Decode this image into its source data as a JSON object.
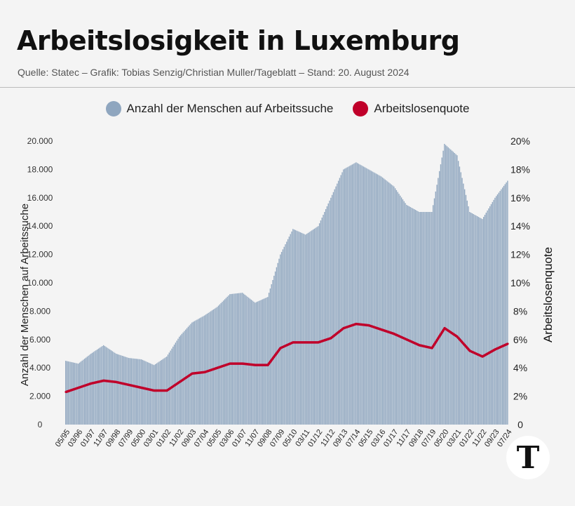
{
  "header": {
    "title": "Arbeitslosigkeit in Luxemburg",
    "subtitle": "Quelle: Statec – Grafik: Tobias Senzig/Christian Muller/Tageblatt – Stand: 20. August 2024"
  },
  "logo": "T",
  "chart_data": {
    "type": "bar+line",
    "legend_position": "top",
    "ylabel_left": "Anzahl der Menschen auf Arbeitssuche",
    "ylabel_right": "Arbeitslosenquote",
    "ylim_left": [
      0,
      20000
    ],
    "ylim_right": [
      0,
      20
    ],
    "yticks_left": [
      "0",
      "2.000",
      "4.000",
      "6.000",
      "8.000",
      "10.000",
      "12.000",
      "14.000",
      "16.000",
      "18.000",
      "20.000"
    ],
    "yticks_right": [
      "0",
      "2%",
      "4%",
      "6%",
      "8%",
      "10%",
      "12%",
      "14%",
      "16%",
      "18%",
      "20%"
    ],
    "categories": [
      "05/95",
      "03/96",
      "01/97",
      "11/97",
      "09/98",
      "07/99",
      "05/00",
      "03/01",
      "01/02",
      "11/02",
      "09/03",
      "07/04",
      "05/05",
      "03/06",
      "01/07",
      "11/07",
      "09/08",
      "07/09",
      "05/10",
      "03/11",
      "01/12",
      "11/12",
      "09/13",
      "07/14",
      "05/15",
      "03/16",
      "01/17",
      "11/17",
      "09/18",
      "07/19",
      "05/20",
      "03/21",
      "01/22",
      "11/22",
      "09/23",
      "07/24"
    ],
    "series": [
      {
        "name": "Anzahl der Menschen auf Arbeitssuche",
        "type": "bar",
        "color": "#8fa6bf",
        "values": [
          4500,
          4300,
          5000,
          5600,
          5000,
          4700,
          4600,
          4200,
          4800,
          6200,
          7200,
          7700,
          8300,
          9200,
          9300,
          8600,
          9000,
          12000,
          13800,
          13400,
          14000,
          16000,
          18000,
          18500,
          18000,
          17500,
          16800,
          15500,
          15000,
          15000,
          19800,
          19000,
          15000,
          14500,
          16000,
          17200
        ]
      },
      {
        "name": "Arbeitslosenquote",
        "type": "line",
        "color": "#c0002a",
        "values": [
          2.3,
          2.6,
          2.9,
          3.1,
          3.0,
          2.8,
          2.6,
          2.4,
          2.4,
          3.0,
          3.6,
          3.7,
          4.0,
          4.3,
          4.3,
          4.2,
          4.2,
          5.4,
          5.8,
          5.8,
          5.8,
          6.1,
          6.8,
          7.1,
          7.0,
          6.7,
          6.4,
          6.0,
          5.6,
          5.4,
          6.8,
          6.2,
          5.2,
          4.8,
          5.3,
          5.7
        ]
      }
    ]
  }
}
